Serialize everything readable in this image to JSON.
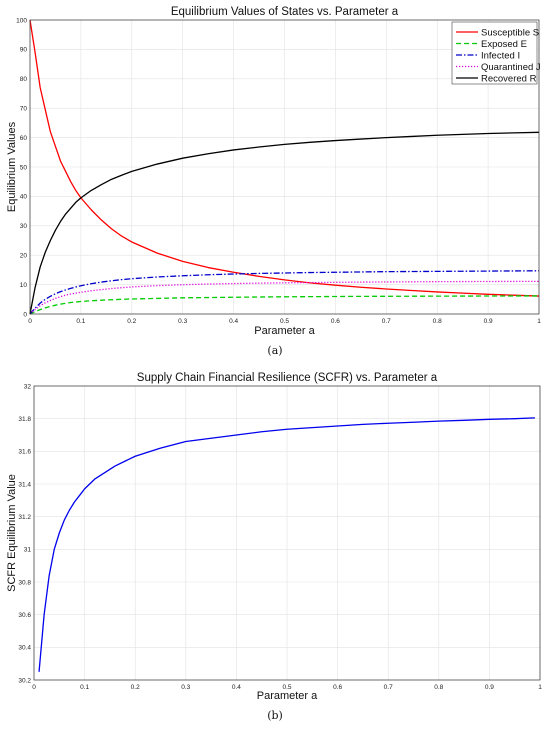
{
  "captions": {
    "a": "(a)",
    "b": "(b)"
  },
  "chart_data": [
    {
      "type": "line",
      "title": "Equilibrium Values of States vs. Parameter a",
      "xlabel": "Parameter a",
      "ylabel": "Equilibrium Values",
      "xlim": [
        0,
        1
      ],
      "ylim": [
        0,
        100
      ],
      "xticks": [
        0,
        0.1,
        0.2,
        0.3,
        0.4,
        0.5,
        0.6,
        0.7,
        0.8,
        0.9,
        1
      ],
      "yticks": [
        0,
        10,
        20,
        30,
        40,
        50,
        60,
        70,
        80,
        90,
        100
      ],
      "grid": true,
      "legend_position": "top-right",
      "x": [
        0,
        0.01,
        0.02,
        0.03,
        0.04,
        0.05,
        0.06,
        0.07,
        0.08,
        0.09,
        0.1,
        0.12,
        0.14,
        0.16,
        0.18,
        0.2,
        0.25,
        0.3,
        0.35,
        0.4,
        0.45,
        0.5,
        0.55,
        0.6,
        0.65,
        0.7,
        0.75,
        0.8,
        0.85,
        0.9,
        0.95,
        1.0
      ],
      "series": [
        {
          "name": "Susceptible S",
          "color": "#ff0000",
          "dash": "solid",
          "values": [
            100,
            89,
            77,
            69.5,
            62,
            57,
            52,
            48.5,
            45,
            42,
            39.5,
            35.5,
            32,
            29,
            26.5,
            24.5,
            20.7,
            17.9,
            15.8,
            14.2,
            12.8,
            11.6,
            10.6,
            9.8,
            9.1,
            8.5,
            8.0,
            7.5,
            7.1,
            6.7,
            6.4,
            6.1
          ]
        },
        {
          "name": "Exposed E",
          "color": "#00cc00",
          "dash": "dashed",
          "values": [
            0,
            0.8,
            1.5,
            2.1,
            2.6,
            3.0,
            3.35,
            3.65,
            3.9,
            4.1,
            4.25,
            4.5,
            4.7,
            4.85,
            5.0,
            5.1,
            5.3,
            5.5,
            5.6,
            5.7,
            5.78,
            5.85,
            5.9,
            5.95,
            6.0,
            6.02,
            6.05,
            6.08,
            6.1,
            6.12,
            6.14,
            6.15
          ]
        },
        {
          "name": "Infected I",
          "color": "#0000cc",
          "dash": "dashdot",
          "values": [
            0,
            2.0,
            3.7,
            5.0,
            6.0,
            6.9,
            7.6,
            8.2,
            8.7,
            9.2,
            9.6,
            10.3,
            10.85,
            11.3,
            11.7,
            12.0,
            12.6,
            13.0,
            13.35,
            13.6,
            13.8,
            13.95,
            14.1,
            14.2,
            14.3,
            14.4,
            14.45,
            14.5,
            14.55,
            14.6,
            14.65,
            14.7
          ]
        },
        {
          "name": "Quarantined J",
          "color": "#dd00dd",
          "dash": "dotted",
          "values": [
            0,
            1.5,
            2.8,
            3.8,
            4.6,
            5.3,
            5.9,
            6.4,
            6.8,
            7.1,
            7.4,
            7.9,
            8.3,
            8.65,
            8.95,
            9.2,
            9.65,
            9.95,
            10.2,
            10.35,
            10.5,
            10.6,
            10.7,
            10.78,
            10.85,
            10.9,
            10.95,
            11.0,
            11.03,
            11.06,
            11.08,
            11.1
          ]
        },
        {
          "name": "Recovered R",
          "color": "#000000",
          "dash": "solid",
          "values": [
            0,
            9,
            16,
            21,
            25,
            28.5,
            31.5,
            34,
            36,
            38,
            39.5,
            42,
            44,
            45.8,
            47.2,
            48.5,
            51,
            53,
            54.5,
            55.8,
            56.8,
            57.7,
            58.4,
            59,
            59.5,
            60,
            60.4,
            60.8,
            61.1,
            61.4,
            61.6,
            61.8
          ]
        }
      ]
    },
    {
      "type": "line",
      "title": "Supply Chain Financial Resilience (SCFR) vs. Parameter a",
      "xlabel": "Parameter a",
      "ylabel": "SCFR Equilibrium Value",
      "xlim": [
        0,
        1
      ],
      "ylim": [
        30.2,
        32
      ],
      "xticks": [
        0,
        0.1,
        0.2,
        0.3,
        0.4,
        0.5,
        0.6,
        0.7,
        0.8,
        0.9,
        1
      ],
      "yticks": [
        30.2,
        30.4,
        30.6,
        30.8,
        31,
        31.2,
        31.4,
        31.6,
        31.8,
        32
      ],
      "grid": true,
      "x": [
        0.01,
        0.02,
        0.03,
        0.04,
        0.05,
        0.06,
        0.07,
        0.08,
        0.09,
        0.1,
        0.12,
        0.14,
        0.16,
        0.18,
        0.2,
        0.25,
        0.3,
        0.35,
        0.4,
        0.45,
        0.5,
        0.55,
        0.6,
        0.65,
        0.7,
        0.75,
        0.8,
        0.85,
        0.9,
        0.95,
        0.99
      ],
      "series": [
        {
          "name": "",
          "color": "#0000ee",
          "dash": "solid",
          "values": [
            30.25,
            30.6,
            30.84,
            31.0,
            31.1,
            31.18,
            31.24,
            31.29,
            31.33,
            31.37,
            31.43,
            31.47,
            31.51,
            31.54,
            31.57,
            31.62,
            31.66,
            31.68,
            31.7,
            31.72,
            31.735,
            31.745,
            31.755,
            31.765,
            31.772,
            31.778,
            31.785,
            31.79,
            31.796,
            31.8,
            31.805
          ]
        }
      ]
    }
  ]
}
